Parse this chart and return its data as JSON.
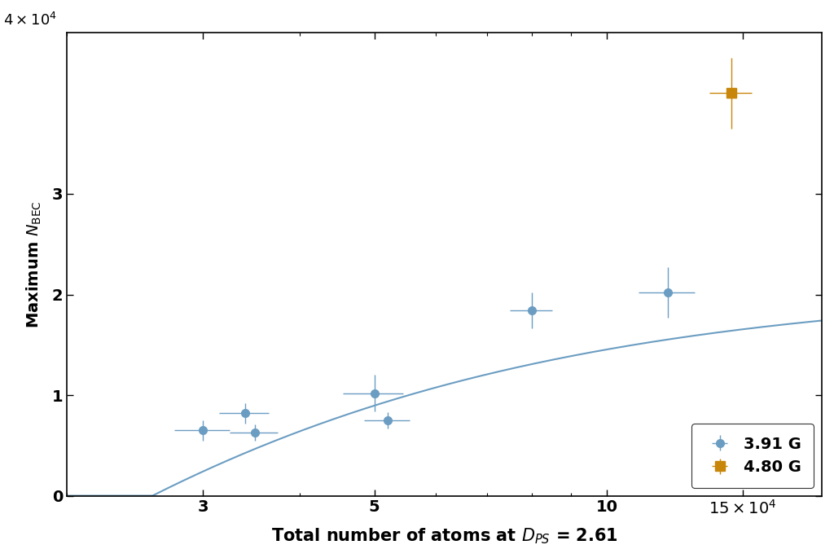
{
  "blue_x": [
    30000.0,
    34000.0,
    35000.0,
    50000.0,
    52000.0,
    80000.0,
    120000.0
  ],
  "blue_y": [
    6500.0,
    8200.0,
    6300.0,
    10200.0,
    7500.0,
    18400.0,
    20200.0
  ],
  "blue_xerr": [
    2500.0,
    2500.0,
    2500.0,
    4500.0,
    3500.0,
    5000.0,
    10000.0
  ],
  "blue_yerr": [
    1000.0,
    1000.0,
    800.0,
    1800.0,
    800.0,
    1800.0,
    2500.0
  ],
  "orange_x": [
    145000.0
  ],
  "orange_y": [
    40000.0
  ],
  "orange_xerr": [
    9000.0
  ],
  "orange_yerr": [
    3500.0
  ],
  "blue_color": "#6B9DC2",
  "orange_color": "#C8860A",
  "curve_color": "#6B9DC2",
  "xlabel": "Total number of atoms at $D_{PS}$ = 2.61",
  "ylabel": "Maximum $N_{\\mathrm{BEC}}$",
  "ylim": [
    0,
    46000.0
  ],
  "xlim": [
    20000.0,
    190000.0
  ],
  "yticks": [
    0,
    10000.0,
    20000.0,
    30000.0
  ],
  "ytick_labels": [
    "0",
    "1",
    "2",
    "3"
  ],
  "legend_labels": [
    "3.91 G",
    "4.80 G"
  ],
  "background_color": "#ffffff",
  "fit_Vmax": 20800.0,
  "fit_Km": 32000.0,
  "fit_x_threshold": 25800.0
}
